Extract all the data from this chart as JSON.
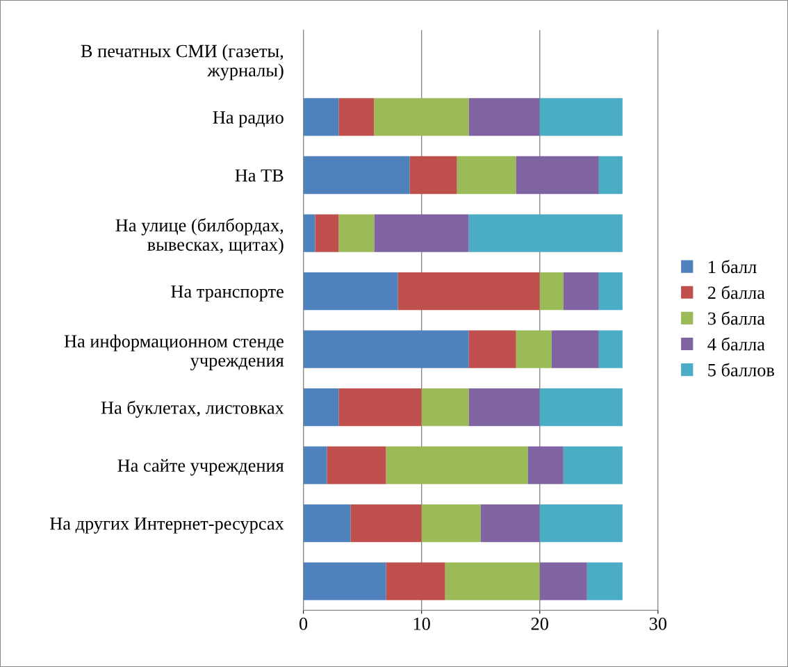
{
  "chart_data": {
    "type": "bar",
    "orientation": "horizontal",
    "stacked": true,
    "categories": [
      "В печатных СМИ (газеты, журналы)",
      "На радио",
      "На ТВ",
      "На улице (билбордах, вывесках, щитах)",
      "На транспорте",
      "На информационном стенде учреждения",
      "На буклетах, листовках",
      "На сайте учреждения",
      "На других Интернет-ресурсах",
      null
    ],
    "series": [
      {
        "name": "1 балл",
        "color": "#4f81bd",
        "values": [
          null,
          3,
          9,
          1,
          8,
          14,
          3,
          2,
          4,
          7
        ]
      },
      {
        "name": "2 балла",
        "color": "#c0504d",
        "values": [
          null,
          3,
          4,
          2,
          12,
          4,
          7,
          5,
          6,
          5
        ]
      },
      {
        "name": "3 балла",
        "color": "#9bbb59",
        "values": [
          null,
          8,
          5,
          3,
          2,
          3,
          4,
          12,
          5,
          8
        ]
      },
      {
        "name": "4 балла",
        "color": "#8064a2",
        "values": [
          null,
          6,
          7,
          8,
          3,
          4,
          6,
          3,
          5,
          4
        ]
      },
      {
        "name": "5 баллов",
        "color": "#4bacc6",
        "values": [
          null,
          7,
          2,
          13,
          2,
          2,
          7,
          5,
          7,
          3
        ]
      }
    ],
    "xlim": [
      0,
      30
    ],
    "xticks": [
      0,
      10,
      20,
      30
    ],
    "grid": "x",
    "legend": "right"
  }
}
